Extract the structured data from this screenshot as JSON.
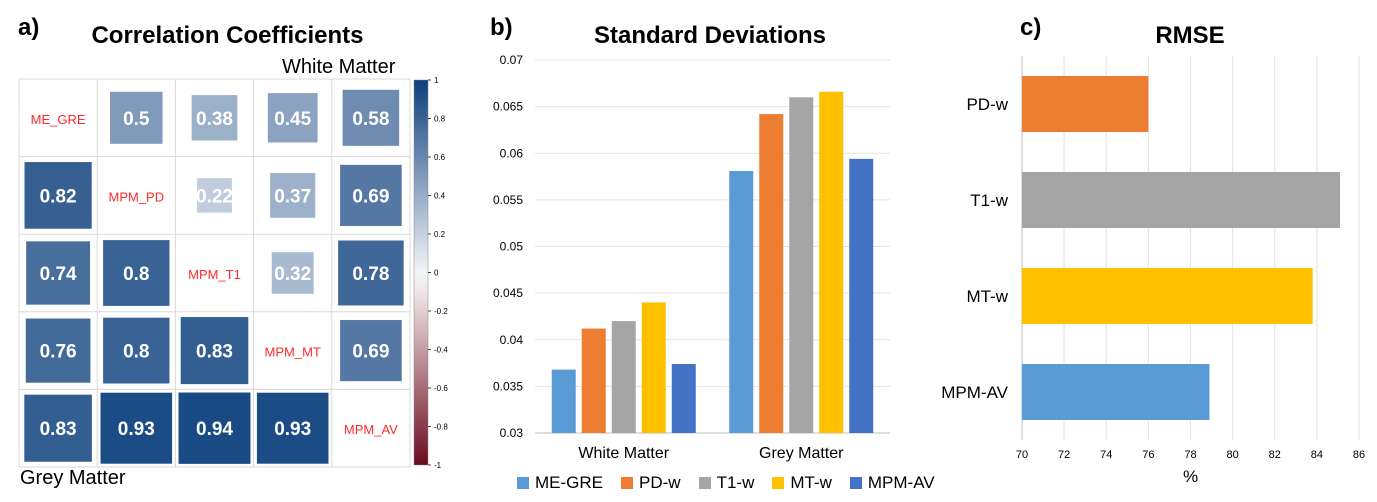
{
  "panels": {
    "a": {
      "letter": "a)",
      "title": "Correlation Coefficients",
      "upper_label": "White Matter",
      "lower_label": "Grey Matter"
    },
    "b": {
      "letter": "b)",
      "title": "Standard Deviations"
    },
    "c": {
      "letter": "c)",
      "title": "RMSE"
    }
  },
  "chart_data": [
    {
      "type": "heatmap",
      "title": "Correlation Coefficients",
      "labels": [
        "ME_GRE",
        "MPM_PD",
        "MPM_T1",
        "MPM_MT",
        "MPM_AV"
      ],
      "upper_triangle_label": "White Matter",
      "lower_triangle_label": "Grey Matter",
      "matrix": [
        [
          null,
          0.5,
          0.38,
          0.45,
          0.58
        ],
        [
          0.82,
          null,
          0.22,
          0.37,
          0.69
        ],
        [
          0.74,
          0.8,
          null,
          0.32,
          0.78
        ],
        [
          0.76,
          0.8,
          0.83,
          null,
          0.69
        ],
        [
          0.83,
          0.93,
          0.94,
          0.93,
          null
        ]
      ],
      "colorbar": {
        "range": [
          -1,
          1
        ],
        "ticks": [
          "1",
          "0.8",
          "0.6",
          "0.4",
          "0.2",
          "0",
          "-0.2",
          "-0.4",
          "-0.6",
          "-0.8",
          "-1"
        ]
      },
      "colors": {
        "positive": "#0c3f7c",
        "neutral": "#ffffff",
        "negative": "#6b0a1e",
        "diag_text": "#ff2a2a"
      }
    },
    {
      "type": "bar",
      "title": "Standard Deviations",
      "categories": [
        "White Matter",
        "Grey Matter"
      ],
      "series": [
        {
          "name": "ME-GRE",
          "color": "#5b9bd5",
          "values": [
            0.0368,
            0.0581
          ]
        },
        {
          "name": "PD-w",
          "color": "#ed7d31",
          "values": [
            0.0412,
            0.0642
          ]
        },
        {
          "name": "T1-w",
          "color": "#a5a5a5",
          "values": [
            0.042,
            0.066
          ]
        },
        {
          "name": "MT-w",
          "color": "#ffc000",
          "values": [
            0.044,
            0.0666
          ]
        },
        {
          "name": "MPM-AV",
          "color": "#4472c4",
          "values": [
            0.0374,
            0.0594
          ]
        }
      ],
      "ylim": [
        0.03,
        0.07
      ],
      "yticks": [
        "0.07",
        "0.065",
        "0.06",
        "0.055",
        "0.05",
        "0.045",
        "0.04",
        "0.035",
        "0.03"
      ],
      "legend": "bottom"
    },
    {
      "type": "bar",
      "orientation": "horizontal",
      "title": "RMSE",
      "categories": [
        "PD-w",
        "T1-w",
        "MT-w",
        "MPM-AV"
      ],
      "values": [
        76.0,
        85.1,
        83.8,
        78.9
      ],
      "colors": [
        "#ed7d31",
        "#a5a5a5",
        "#ffc000",
        "#5b9bd5"
      ],
      "xlim": [
        70,
        86
      ],
      "xticks": [
        "70",
        "72",
        "74",
        "76",
        "78",
        "80",
        "82",
        "84",
        "86"
      ],
      "xlabel": "%"
    }
  ]
}
